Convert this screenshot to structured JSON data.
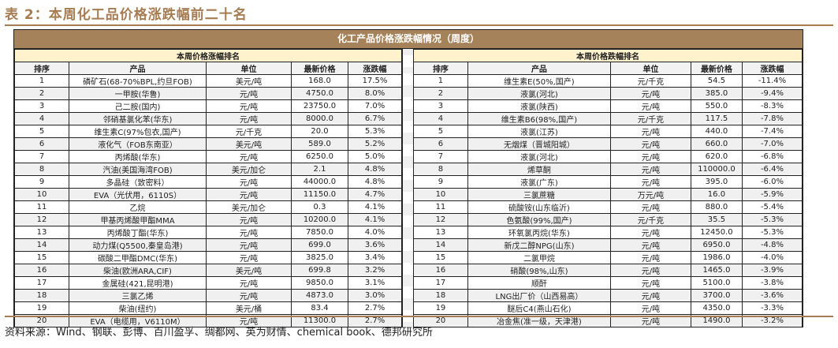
{
  "title": "表 2：本周化工品价格涨跌幅前二十名",
  "table_title": "化工产品价格涨跌幅情况（周度）",
  "columns": [
    "排序",
    "产品",
    "单位",
    "最新价格",
    "涨跌幅"
  ],
  "left": {
    "heading": "本周价格涨幅排名",
    "rows": [
      [
        "1",
        "磷矿石(68-70%BPL,约旦FOB)",
        "美元/吨",
        "168.0",
        "17.5%"
      ],
      [
        "2",
        "一甲胺(华鲁)",
        "元/吨",
        "4750.0",
        "8.0%"
      ],
      [
        "3",
        "己二胺(国内)",
        "元/吨",
        "23750.0",
        "7.0%"
      ],
      [
        "4",
        "邻硝基氯化苯(华东)",
        "元/吨",
        "8000.0",
        "6.7%"
      ],
      [
        "5",
        "维生素C(97%包衣,国产)",
        "元/千克",
        "20.0",
        "5.3%"
      ],
      [
        "6",
        "液化气（FOB东南亚）",
        "美元/吨",
        "589.0",
        "5.2%"
      ],
      [
        "7",
        "丙烯酸(华东)",
        "元/吨",
        "6250.0",
        "5.0%"
      ],
      [
        "8",
        "汽油(美国海湾FOB)",
        "美元/加仑",
        "2.1",
        "4.8%"
      ],
      [
        "9",
        "多晶硅（致密料）",
        "元/吨",
        "44000.0",
        "4.8%"
      ],
      [
        "10",
        "EVA（光伏用，6110S）",
        "元/吨",
        "11150.0",
        "4.7%"
      ],
      [
        "11",
        "乙烷",
        "美元/加仑",
        "0.3",
        "4.1%"
      ],
      [
        "12",
        "甲基丙烯酸甲酯MMA",
        "元/吨",
        "10200.0",
        "4.1%"
      ],
      [
        "13",
        "丙烯酸丁酯(华东)",
        "元/吨",
        "7850.0",
        "4.0%"
      ],
      [
        "14",
        "动力煤(Q5500,秦皇岛港)",
        "元/吨",
        "699.0",
        "3.6%"
      ],
      [
        "15",
        "碳酸二甲酯DMC(华东)",
        "元/吨",
        "3825.0",
        "3.4%"
      ],
      [
        "16",
        "柴油(欧洲ARA,CIF)",
        "美元/吨",
        "699.8",
        "3.2%"
      ],
      [
        "17",
        "金属硅(421,昆明港)",
        "元/吨",
        "9850.0",
        "3.1%"
      ],
      [
        "18",
        "三氯乙烯",
        "元/吨",
        "4873.0",
        "3.0%"
      ],
      [
        "19",
        "柴油(纽约)",
        "美元/桶",
        "83.4",
        "2.7%"
      ],
      [
        "20",
        "EVA（电缆用，V6110M）",
        "元/吨",
        "11300.0",
        "2.7%"
      ]
    ]
  },
  "right": {
    "heading": "本周价格跌幅排名",
    "rows": [
      [
        "1",
        "维生素E(50%,国产)",
        "元/千克",
        "54.5",
        "-11.4%"
      ],
      [
        "2",
        "液氯(河北)",
        "元/吨",
        "385.0",
        "-9.4%"
      ],
      [
        "3",
        "液氯(陕西)",
        "元/吨",
        "550.0",
        "-8.3%"
      ],
      [
        "4",
        "维生素B6(98%,国产)",
        "元/千克",
        "117.5",
        "-7.8%"
      ],
      [
        "5",
        "液氯(江苏)",
        "元/吨",
        "440.0",
        "-7.4%"
      ],
      [
        "6",
        "无烟煤（晋城阳城）",
        "元/吨",
        "660.0",
        "-7.0%"
      ],
      [
        "7",
        "液氯(河北)",
        "元/吨",
        "620.0",
        "-6.8%"
      ],
      [
        "8",
        "烯草酮",
        "元/吨",
        "110000.0",
        "-6.4%"
      ],
      [
        "9",
        "液氯(广东)",
        "元/吨",
        "395.0",
        "-6.0%"
      ],
      [
        "10",
        "三氯蔗糖",
        "万元/吨",
        "16.0",
        "-5.9%"
      ],
      [
        "11",
        "硫酸铵(山东临沂)",
        "元/吨",
        "880.0",
        "-5.4%"
      ],
      [
        "12",
        "色氨酸(99%,国产)",
        "元/千克",
        "35.5",
        "-5.3%"
      ],
      [
        "13",
        "环氧氯丙烷(华东)",
        "元/吨",
        "12450.0",
        "-5.3%"
      ],
      [
        "14",
        "新戊二醇NPG(山东)",
        "元/吨",
        "6950.0",
        "-4.8%"
      ],
      [
        "15",
        "二氯甲烷",
        "元/吨",
        "1986.0",
        "-4.0%"
      ],
      [
        "16",
        "硝酸(98%,山东)",
        "元/吨",
        "1465.0",
        "-3.9%"
      ],
      [
        "17",
        "顺酐",
        "元/吨",
        "5100.0",
        "-3.8%"
      ],
      [
        "18",
        "LNG出厂价（山西易高）",
        "元/吨",
        "3700.0",
        "-3.6%"
      ],
      [
        "19",
        "醚后C4(燕山石化)",
        "元/吨",
        "4350.0",
        "-3.3%"
      ],
      [
        "20",
        "冶金焦(准一级，天津港)",
        "元/吨",
        "1490.0",
        "-3.2%"
      ]
    ]
  },
  "source": "资料来源：Wind、钢联、彭博、百川盈孚、绸都网、英为财情、chemical book、德邦研究所"
}
